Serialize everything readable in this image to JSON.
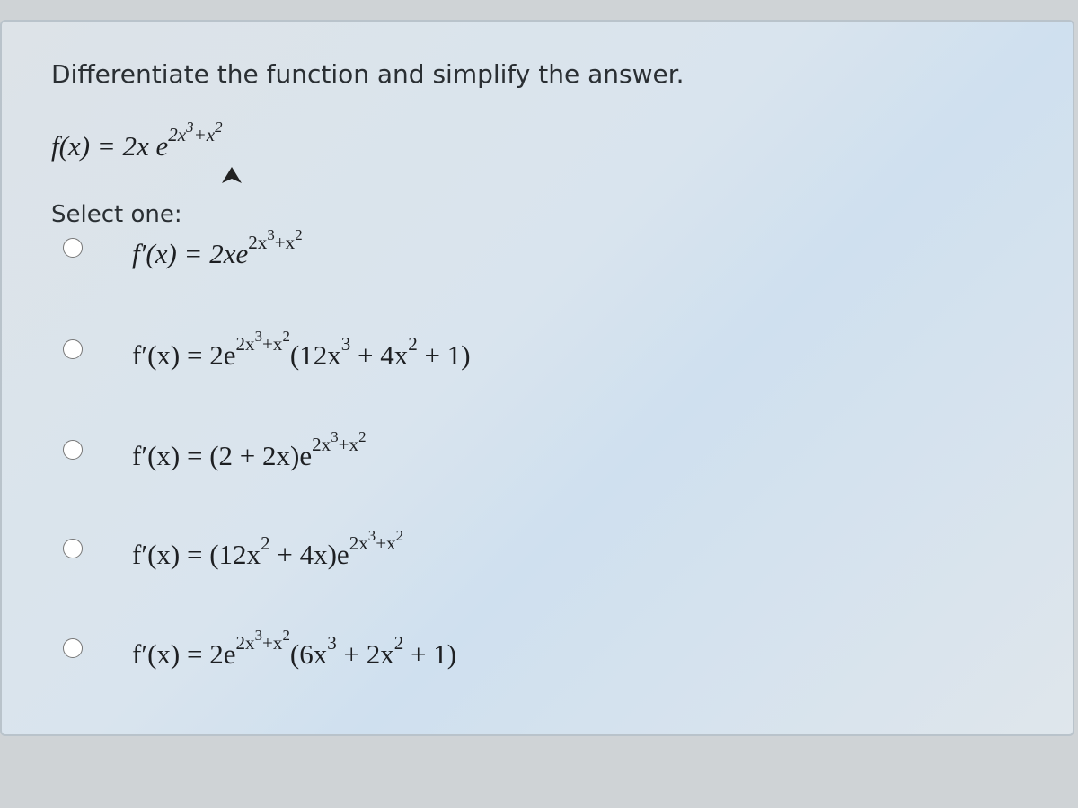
{
  "question": {
    "prompt": "Differentiate the function and simplify the answer.",
    "function": [
      "f(x) = 2x e",
      "2x",
      "3",
      "+x",
      "2"
    ],
    "select_label": "Select one:"
  },
  "options": [
    [
      "f′(x) = 2xe",
      "2x",
      "3",
      "+x",
      "2"
    ],
    [
      "f′(x) = 2e",
      "2x",
      "3",
      "+x",
      "2",
      "(12x",
      "3",
      " + 4x",
      "2",
      " + 1)"
    ],
    [
      "f′(x) = (2 + 2x)e",
      "2x",
      "3",
      "+x",
      "2"
    ],
    [
      "f′(x) = (12x",
      "2",
      " + 4x)e",
      "2x",
      "3",
      "+x",
      "2"
    ],
    [
      "f′(x) = 2e",
      "2x",
      "3",
      "+x",
      "2",
      "(6x",
      "3",
      " + 2x",
      "2",
      " + 1)"
    ]
  ]
}
